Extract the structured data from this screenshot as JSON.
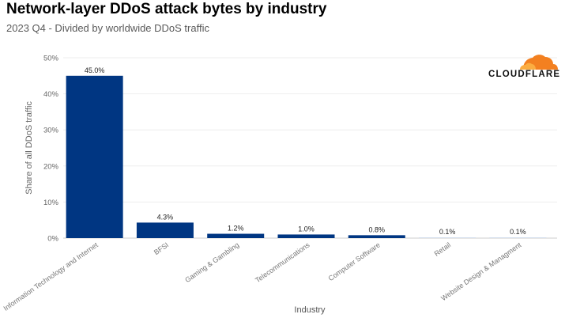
{
  "header": {
    "title": "Network-layer DDoS attack bytes by industry",
    "subtitle": "2023 Q4 - Divided by worldwide DDoS traffic"
  },
  "logo": {
    "text": "CLOUDFLARE",
    "icon": "cloud-icon",
    "color": "#f38020"
  },
  "chart_data": {
    "type": "bar",
    "categories": [
      "Information Technology and Internet",
      "BFSI",
      "Gaming & Gambling",
      "Telecommunications",
      "Computer Software",
      "Retail",
      "Website Design & Managment"
    ],
    "values": [
      45.0,
      4.3,
      1.2,
      1.0,
      0.8,
      0.1,
      0.1
    ],
    "value_labels": [
      "45.0%",
      "4.3%",
      "1.2%",
      "1.0%",
      "0.8%",
      "0.1%",
      "0.1%"
    ],
    "xlabel": "Industry",
    "ylabel": "Share of all DDoS traffic",
    "ylim": [
      0,
      50
    ],
    "yticks": [
      0,
      10,
      20,
      30,
      40,
      50
    ],
    "ytick_labels": [
      "0%",
      "10%",
      "20%",
      "30%",
      "40%",
      "50%"
    ],
    "grid": true,
    "colors": {
      "bar": "#003682",
      "bar_faint": "#c9d7ea",
      "grid": "#eeeeee"
    }
  }
}
